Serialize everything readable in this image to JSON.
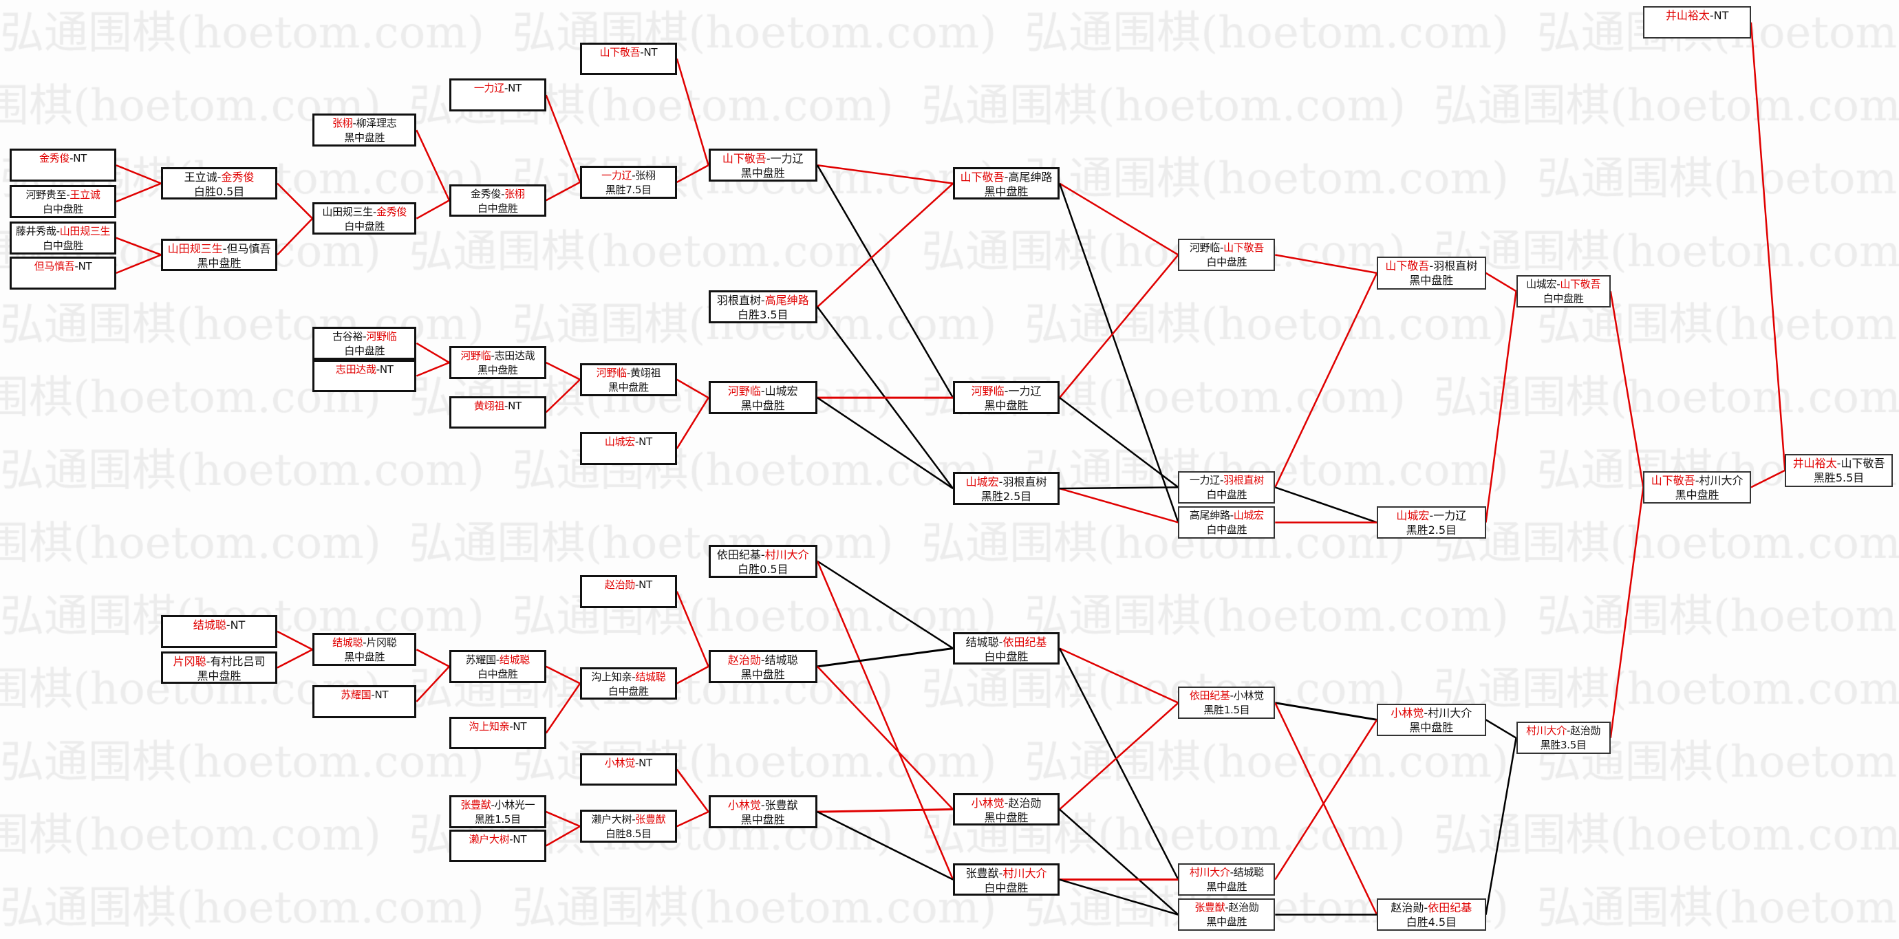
{
  "watermark": "弘通围棋(hoetom.com)",
  "separator": "-",
  "colors": {
    "winner": "#e00000",
    "winner_path": "#e00000",
    "loser_path": "#000000",
    "box_border": "#111111"
  },
  "matches": [
    {
      "a": "金秀俊",
      "b": "NT",
      "win": "a",
      "result": ""
    },
    {
      "a": "河野贵至",
      "b": "王立诚",
      "win": "b",
      "result": "白中盘胜"
    },
    {
      "a": "藤井秀哉",
      "b": "山田规三生",
      "win": "b",
      "result": "白中盘胜"
    },
    {
      "a": "但马慎吾",
      "b": "NT",
      "win": "a",
      "result": ""
    },
    {
      "a": "结城聪",
      "b": "NT",
      "win": "a",
      "result": ""
    },
    {
      "a": "片冈聪",
      "b": "有村比吕司",
      "win": "a",
      "result": "黑中盘胜"
    },
    {
      "a": "王立诚",
      "b": "金秀俊",
      "win": "b",
      "result": "白胜0.5目"
    },
    {
      "a": "山田规三生",
      "b": "但马慎吾",
      "win": "a",
      "result": "黑中盘胜"
    },
    {
      "a": "古谷裕",
      "b": "河野临",
      "win": "b",
      "result": "白中盘胜"
    },
    {
      "a": "志田达哉",
      "b": "NT",
      "win": "a",
      "result": ""
    },
    {
      "a": "张栩",
      "b": "柳泽理志",
      "win": "a",
      "result": "黑中盘胜"
    },
    {
      "a": "山田规三生",
      "b": "金秀俊",
      "win": "b",
      "result": "白中盘胜"
    },
    {
      "a": "结城聪",
      "b": "片冈聪",
      "win": "a",
      "result": "黑中盘胜"
    },
    {
      "a": "苏耀国",
      "b": "NT",
      "win": "a",
      "result": ""
    },
    {
      "a": "一力辽",
      "b": "NT",
      "win": "a",
      "result": ""
    },
    {
      "a": "金秀俊",
      "b": "张栩",
      "win": "b",
      "result": "白中盘胜"
    },
    {
      "a": "河野临",
      "b": "志田达哉",
      "win": "a",
      "result": "黑中盘胜"
    },
    {
      "a": "黄翊祖",
      "b": "NT",
      "win": "a",
      "result": ""
    },
    {
      "a": "苏耀国",
      "b": "结城聪",
      "win": "b",
      "result": "白中盘胜"
    },
    {
      "a": "沟上知亲",
      "b": "NT",
      "win": "a",
      "result": ""
    },
    {
      "a": "张豊猷",
      "b": "小林光一",
      "win": "a",
      "result": "黑胜1.5目"
    },
    {
      "a": "濑户大树",
      "b": "NT",
      "win": "a",
      "result": ""
    },
    {
      "a": "山下敬吾",
      "b": "NT",
      "win": "a",
      "result": ""
    },
    {
      "a": "一力辽",
      "b": "张栩",
      "win": "a",
      "result": "黑胜7.5目"
    },
    {
      "a": "河野临",
      "b": "黄翊祖",
      "win": "a",
      "result": "黑中盘胜"
    },
    {
      "a": "山城宏",
      "b": "NT",
      "win": "a",
      "result": ""
    },
    {
      "a": "赵治勋",
      "b": "NT",
      "win": "a",
      "result": ""
    },
    {
      "a": "沟上知亲",
      "b": "结城聪",
      "win": "b",
      "result": "白中盘胜"
    },
    {
      "a": "小林觉",
      "b": "NT",
      "win": "a",
      "result": ""
    },
    {
      "a": "濑户大树",
      "b": "张豊猷",
      "win": "b",
      "result": "白胜8.5目"
    },
    {
      "a": "山下敬吾",
      "b": "一力辽",
      "win": "a",
      "result": "黑中盘胜"
    },
    {
      "a": "羽根直树",
      "b": "高尾绅路",
      "win": "b",
      "result": "白胜3.5目"
    },
    {
      "a": "河野临",
      "b": "山城宏",
      "win": "a",
      "result": "黑中盘胜"
    },
    {
      "a": "依田纪基",
      "b": "村川大介",
      "win": "b",
      "result": "白胜0.5目"
    },
    {
      "a": "赵治勋",
      "b": "结城聪",
      "win": "a",
      "result": "黑中盘胜"
    },
    {
      "a": "小林觉",
      "b": "张豊猷",
      "win": "a",
      "result": "黑中盘胜"
    },
    {
      "a": "山下敬吾",
      "b": "高尾绅路",
      "win": "a",
      "result": "黑中盘胜"
    },
    {
      "a": "河野临",
      "b": "一力辽",
      "win": "a",
      "result": "黑中盘胜"
    },
    {
      "a": "山城宏",
      "b": "羽根直树",
      "win": "a",
      "result": "黑胜2.5目"
    },
    {
      "a": "结城聪",
      "b": "依田纪基",
      "win": "b",
      "result": "白中盘胜"
    },
    {
      "a": "小林觉",
      "b": "赵治勋",
      "win": "a",
      "result": "黑中盘胜"
    },
    {
      "a": "张豊猷",
      "b": "村川大介",
      "win": "b",
      "result": "白中盘胜"
    },
    {
      "a": "河野临",
      "b": "山下敬吾",
      "win": "b",
      "result": "白中盘胜"
    },
    {
      "a": "一力辽",
      "b": "羽根直树",
      "win": "b",
      "result": "白中盘胜"
    },
    {
      "a": "高尾绅路",
      "b": "山城宏",
      "win": "b",
      "result": "白中盘胜"
    },
    {
      "a": "依田纪基",
      "b": "小林觉",
      "win": "a",
      "result": "黑胜1.5目"
    },
    {
      "a": "村川大介",
      "b": "结城聪",
      "win": "a",
      "result": "黑中盘胜"
    },
    {
      "a": "张豊猷",
      "b": "赵治勋",
      "win": "a",
      "result": "黑中盘胜"
    },
    {
      "a": "山下敬吾",
      "b": "羽根直树",
      "win": "a",
      "result": "黑中盘胜"
    },
    {
      "a": "山城宏",
      "b": "一力辽",
      "win": "a",
      "result": "黑胜2.5目"
    },
    {
      "a": "小林觉",
      "b": "村川大介",
      "win": "a",
      "result": "黑中盘胜"
    },
    {
      "a": "赵治勋",
      "b": "依田纪基",
      "win": "b",
      "result": "白胜4.5目"
    },
    {
      "a": "山城宏",
      "b": "山下敬吾",
      "win": "b",
      "result": "白中盘胜"
    },
    {
      "a": "村川大介",
      "b": "赵治勋",
      "win": "a",
      "result": "黑胜3.5目"
    },
    {
      "a": "井山裕太",
      "b": "NT",
      "win": "a",
      "result": ""
    },
    {
      "a": "山下敬吾",
      "b": "村川大介",
      "win": "a",
      "result": "黑中盘胜"
    },
    {
      "a": "井山裕太",
      "b": "山下敬吾",
      "win": "a",
      "result": "黑胜5.5目"
    }
  ]
}
